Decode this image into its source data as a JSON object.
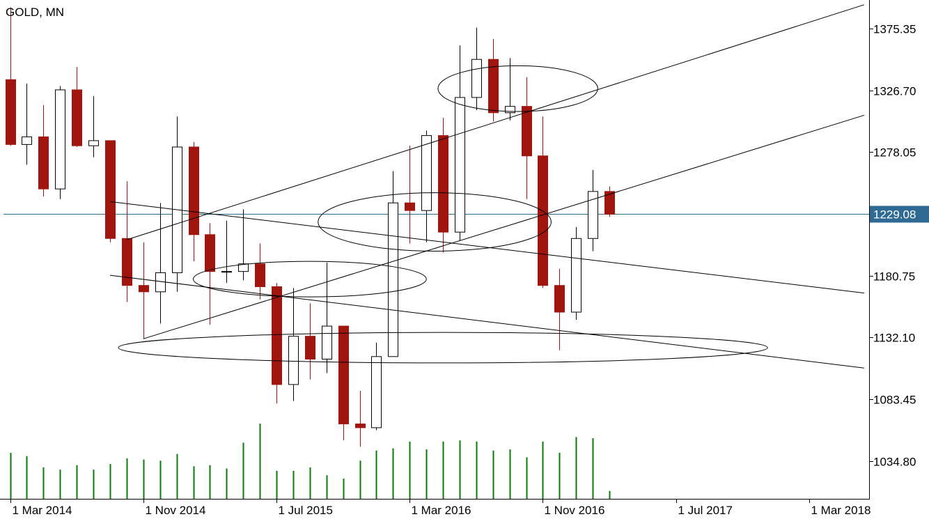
{
  "header": {
    "symbol": "GOLD, MN"
  },
  "colors": {
    "bear_fill": "#A0160E",
    "bull_fill": "#FFFFFF",
    "candle_stroke": "#000000",
    "bear_wick": "#A0160E",
    "volume": "#0A7A0A",
    "current_price_line": "#2A6C8C",
    "current_price_label_bg": "#2E6A94",
    "current_price_label_text": "#FFFFFF",
    "drawing": "#000000"
  },
  "chart_data": {
    "type": "candlestick",
    "title": "GOLD, MN",
    "timeframe": "MN",
    "current_price": "1229.08",
    "y_tick_labels": [
      "1375.35",
      "1326.70",
      "1278.05",
      "1229.08",
      "1180.75",
      "1132.10",
      "1083.45",
      "1034.80"
    ],
    "y_tick_values": [
      1375.35,
      1326.7,
      1278.05,
      1229.08,
      1180.75,
      1132.1,
      1083.45,
      1034.8
    ],
    "x_tick_labels": [
      "1 Mar 2014",
      "1 Nov 2014",
      "1 Jul 2015",
      "1 Mar 2016",
      "1 Nov 2016",
      "1 Jul 2017",
      "1 Mar 2018"
    ],
    "x_tick_month_index": [
      0,
      8,
      16,
      24,
      32,
      40,
      48
    ],
    "ylim": [
      1005,
      1395
    ],
    "x_range_months": [
      -0.4,
      51.6
    ],
    "grid": false,
    "candles": [
      {
        "date": "2014-03",
        "open": 1335,
        "high": 1392,
        "low": 1283,
        "close": 1284
      },
      {
        "date": "2014-04",
        "open": 1284,
        "high": 1332,
        "low": 1268,
        "close": 1290
      },
      {
        "date": "2014-05",
        "open": 1290,
        "high": 1315,
        "low": 1243,
        "close": 1249
      },
      {
        "date": "2014-06",
        "open": 1249,
        "high": 1330,
        "low": 1241,
        "close": 1327
      },
      {
        "date": "2014-07",
        "open": 1327,
        "high": 1345,
        "low": 1282,
        "close": 1283
      },
      {
        "date": "2014-08",
        "open": 1283,
        "high": 1322,
        "low": 1274,
        "close": 1287
      },
      {
        "date": "2014-09",
        "open": 1287,
        "high": 1287,
        "low": 1207,
        "close": 1210
      },
      {
        "date": "2014-10",
        "open": 1210,
        "high": 1255,
        "low": 1160,
        "close": 1173
      },
      {
        "date": "2014-11",
        "open": 1173,
        "high": 1207,
        "low": 1131,
        "close": 1168
      },
      {
        "date": "2014-12",
        "open": 1168,
        "high": 1238,
        "low": 1143,
        "close": 1183
      },
      {
        "date": "2015-01",
        "open": 1183,
        "high": 1306,
        "low": 1168,
        "close": 1282
      },
      {
        "date": "2015-02",
        "open": 1282,
        "high": 1286,
        "low": 1192,
        "close": 1213
      },
      {
        "date": "2015-03",
        "open": 1213,
        "high": 1222,
        "low": 1142,
        "close": 1184
      },
      {
        "date": "2015-04",
        "open": 1184,
        "high": 1224,
        "low": 1175,
        "close": 1184
      },
      {
        "date": "2015-05",
        "open": 1184,
        "high": 1233,
        "low": 1177,
        "close": 1190
      },
      {
        "date": "2015-06",
        "open": 1190,
        "high": 1206,
        "low": 1162,
        "close": 1172
      },
      {
        "date": "2015-07",
        "open": 1172,
        "high": 1175,
        "low": 1080,
        "close": 1095
      },
      {
        "date": "2015-08",
        "open": 1095,
        "high": 1171,
        "low": 1082,
        "close": 1133
      },
      {
        "date": "2015-09",
        "open": 1133,
        "high": 1159,
        "low": 1099,
        "close": 1115
      },
      {
        "date": "2015-10",
        "open": 1115,
        "high": 1191,
        "low": 1104,
        "close": 1141
      },
      {
        "date": "2015-11",
        "open": 1141,
        "high": 1141,
        "low": 1051,
        "close": 1064
      },
      {
        "date": "2015-12",
        "open": 1064,
        "high": 1090,
        "low": 1046,
        "close": 1061
      },
      {
        "date": "2016-01",
        "open": 1061,
        "high": 1128,
        "low": 1059,
        "close": 1117
      },
      {
        "date": "2016-02",
        "open": 1117,
        "high": 1263,
        "low": 1117,
        "close": 1238
      },
      {
        "date": "2016-03",
        "open": 1238,
        "high": 1283,
        "low": 1206,
        "close": 1232
      },
      {
        "date": "2016-04",
        "open": 1232,
        "high": 1295,
        "low": 1207,
        "close": 1291
      },
      {
        "date": "2016-05",
        "open": 1291,
        "high": 1305,
        "low": 1199,
        "close": 1215
      },
      {
        "date": "2016-06",
        "open": 1215,
        "high": 1362,
        "low": 1208,
        "close": 1321
      },
      {
        "date": "2016-07",
        "open": 1321,
        "high": 1376,
        "low": 1311,
        "close": 1351
      },
      {
        "date": "2016-08",
        "open": 1351,
        "high": 1367,
        "low": 1302,
        "close": 1309
      },
      {
        "date": "2016-09",
        "open": 1309,
        "high": 1352,
        "low": 1303,
        "close": 1314
      },
      {
        "date": "2016-10",
        "open": 1314,
        "high": 1337,
        "low": 1241,
        "close": 1275
      },
      {
        "date": "2016-11",
        "open": 1275,
        "high": 1306,
        "low": 1171,
        "close": 1173
      },
      {
        "date": "2016-12",
        "open": 1173,
        "high": 1186,
        "low": 1122,
        "close": 1152
      },
      {
        "date": "2017-01",
        "open": 1152,
        "high": 1219,
        "low": 1146,
        "close": 1210
      },
      {
        "date": "2017-02",
        "open": 1210,
        "high": 1264,
        "low": 1200,
        "close": 1247
      },
      {
        "date": "2017-03",
        "open": 1247,
        "high": 1251,
        "low": 1227,
        "close": 1229.08
      }
    ],
    "volume": [
      {
        "date": "2014-03",
        "value": 41
      },
      {
        "date": "2014-04",
        "value": 38
      },
      {
        "date": "2014-05",
        "value": 28
      },
      {
        "date": "2014-06",
        "value": 26
      },
      {
        "date": "2014-07",
        "value": 30
      },
      {
        "date": "2014-08",
        "value": 26
      },
      {
        "date": "2014-09",
        "value": 31
      },
      {
        "date": "2014-10",
        "value": 36
      },
      {
        "date": "2014-11",
        "value": 35
      },
      {
        "date": "2014-12",
        "value": 34
      },
      {
        "date": "2015-01",
        "value": 40
      },
      {
        "date": "2015-02",
        "value": 29
      },
      {
        "date": "2015-03",
        "value": 30
      },
      {
        "date": "2015-04",
        "value": 27
      },
      {
        "date": "2015-05",
        "value": 50
      },
      {
        "date": "2015-06",
        "value": 67
      },
      {
        "date": "2015-07",
        "value": 25
      },
      {
        "date": "2015-08",
        "value": 25
      },
      {
        "date": "2015-09",
        "value": 28
      },
      {
        "date": "2015-10",
        "value": 21
      },
      {
        "date": "2015-11",
        "value": 18
      },
      {
        "date": "2015-12",
        "value": 34
      },
      {
        "date": "2016-01",
        "value": 43
      },
      {
        "date": "2016-02",
        "value": 45
      },
      {
        "date": "2016-03",
        "value": 51
      },
      {
        "date": "2016-04",
        "value": 44
      },
      {
        "date": "2016-05",
        "value": 51
      },
      {
        "date": "2016-06",
        "value": 52
      },
      {
        "date": "2016-07",
        "value": 51
      },
      {
        "date": "2016-08",
        "value": 43
      },
      {
        "date": "2016-09",
        "value": 44
      },
      {
        "date": "2016-10",
        "value": 37
      },
      {
        "date": "2016-11",
        "value": 51
      },
      {
        "date": "2016-12",
        "value": 41
      },
      {
        "date": "2017-01",
        "value": 55
      },
      {
        "date": "2017-02",
        "value": 54
      },
      {
        "date": "2017-03",
        "value": 7
      }
    ],
    "trendlines": [
      {
        "name": "upper-rising-channel-line",
        "from": {
          "month": 7.0,
          "price": 1209
        },
        "to": {
          "month": 51.3,
          "price": 1394
        }
      },
      {
        "name": "lower-rising-channel-line",
        "from": {
          "month": 8.0,
          "price": 1131
        },
        "to": {
          "month": 51.3,
          "price": 1307
        }
      },
      {
        "name": "upper-falling-line",
        "from": {
          "month": 6.0,
          "price": 1239
        },
        "to": {
          "month": 51.3,
          "price": 1167
        }
      },
      {
        "name": "lower-falling-line",
        "from": {
          "month": 6.0,
          "price": 1181
        },
        "to": {
          "month": 51.3,
          "price": 1108
        }
      }
    ],
    "highlight_ellipses": [
      {
        "name": "ellipse-mid-2015",
        "center": {
          "month": 18.0,
          "price": 1178
        },
        "radius_months": 7.0,
        "radius_price": 14
      },
      {
        "name": "ellipse-low-2015",
        "center": {
          "month": 26.0,
          "price": 1124
        },
        "radius_months": 19.5,
        "radius_price": 12
      },
      {
        "name": "ellipse-early-2016",
        "center": {
          "month": 25.5,
          "price": 1223
        },
        "radius_months": 7.0,
        "radius_price": 23
      },
      {
        "name": "ellipse-mid-2016",
        "center": {
          "month": 30.5,
          "price": 1328
        },
        "radius_months": 4.8,
        "radius_price": 18
      }
    ]
  }
}
